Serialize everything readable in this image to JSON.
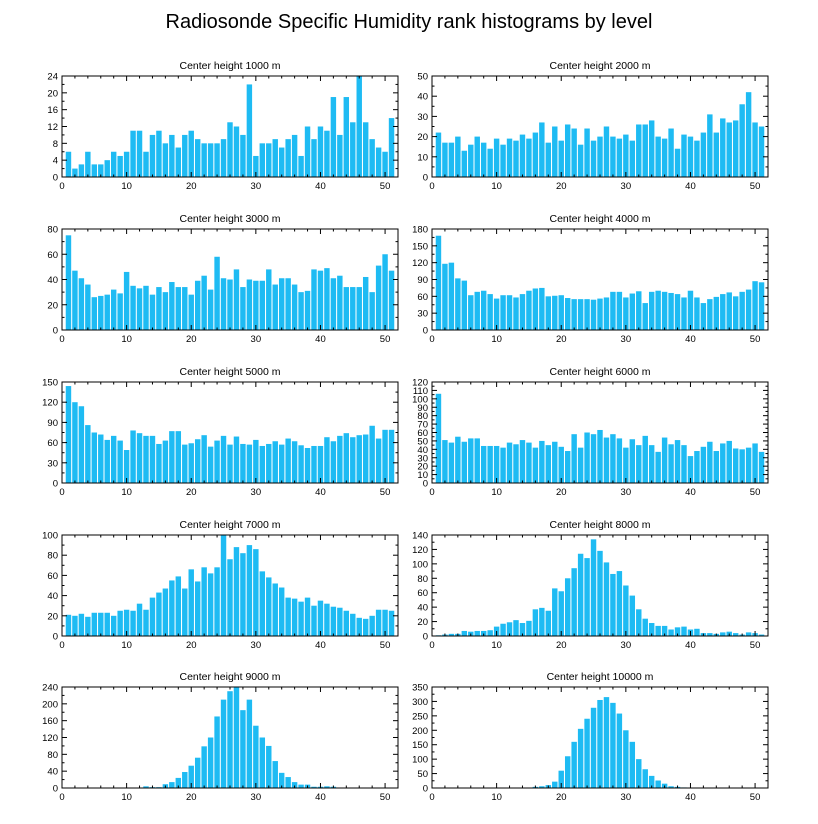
{
  "chart_data": {
    "title": "Radiosonde Specific Humidity rank histograms by level",
    "type": "bar",
    "bar_color": "#1ebbf3",
    "xlim": [
      0,
      52
    ],
    "x_ticks": [
      0,
      10,
      20,
      30,
      40,
      50
    ],
    "panels": [
      {
        "title": "Center height 1000 m",
        "ylim": [
          0,
          24
        ],
        "y_ticks": [
          0,
          4,
          8,
          12,
          16,
          20,
          24
        ],
        "x": [
          1,
          2,
          3,
          4,
          5,
          6,
          7,
          8,
          9,
          10,
          11,
          12,
          13,
          14,
          15,
          16,
          17,
          18,
          19,
          20,
          21,
          22,
          23,
          24,
          25,
          26,
          27,
          28,
          29,
          30,
          31,
          32,
          33,
          34,
          35,
          36,
          37,
          38,
          39,
          40,
          41,
          42,
          43,
          44,
          45,
          46,
          47,
          48,
          49,
          50,
          51
        ],
        "values": [
          6,
          2,
          3,
          6,
          3,
          3,
          4,
          6,
          5,
          6,
          11,
          11,
          6,
          10,
          11,
          8,
          10,
          7,
          10,
          11,
          9,
          8,
          8,
          8,
          9,
          13,
          12,
          10,
          22,
          5,
          8,
          8,
          9,
          7,
          9,
          10,
          5,
          12,
          9,
          12,
          11,
          19,
          10,
          19,
          13,
          24,
          13,
          9,
          7,
          6,
          14
        ]
      },
      {
        "title": "Center height 2000 m",
        "ylim": [
          0,
          50
        ],
        "y_ticks": [
          0,
          10,
          20,
          30,
          40,
          50
        ],
        "x": [
          1,
          2,
          3,
          4,
          5,
          6,
          7,
          8,
          9,
          10,
          11,
          12,
          13,
          14,
          15,
          16,
          17,
          18,
          19,
          20,
          21,
          22,
          23,
          24,
          25,
          26,
          27,
          28,
          29,
          30,
          31,
          32,
          33,
          34,
          35,
          36,
          37,
          38,
          39,
          40,
          41,
          42,
          43,
          44,
          45,
          46,
          47,
          48,
          49,
          50,
          51
        ],
        "values": [
          22,
          17,
          17,
          20,
          13,
          16,
          20,
          17,
          14,
          19,
          16,
          19,
          18,
          21,
          19,
          22,
          27,
          17,
          25,
          18,
          26,
          24,
          16,
          24,
          18,
          20,
          25,
          20,
          19,
          21,
          18,
          26,
          26,
          28,
          20,
          19,
          24,
          14,
          21,
          20,
          18,
          22,
          31,
          22,
          29,
          27,
          28,
          36,
          42,
          27,
          25
        ]
      },
      {
        "title": "Center height 3000 m",
        "ylim": [
          0,
          80
        ],
        "y_ticks": [
          0,
          20,
          40,
          60,
          80
        ],
        "x": [
          1,
          2,
          3,
          4,
          5,
          6,
          7,
          8,
          9,
          10,
          11,
          12,
          13,
          14,
          15,
          16,
          17,
          18,
          19,
          20,
          21,
          22,
          23,
          24,
          25,
          26,
          27,
          28,
          29,
          30,
          31,
          32,
          33,
          34,
          35,
          36,
          37,
          38,
          39,
          40,
          41,
          42,
          43,
          44,
          45,
          46,
          47,
          48,
          49,
          50,
          51
        ],
        "values": [
          75,
          47,
          41,
          36,
          26,
          27,
          28,
          32,
          29,
          46,
          35,
          33,
          35,
          28,
          34,
          30,
          38,
          34,
          34,
          28,
          39,
          43,
          32,
          58,
          41,
          40,
          48,
          34,
          40,
          39,
          39,
          48,
          36,
          41,
          41,
          36,
          30,
          31,
          48,
          47,
          49,
          41,
          43,
          34,
          34,
          34,
          42,
          30,
          51,
          60,
          47
        ]
      },
      {
        "title": "Center height 4000 m",
        "ylim": [
          0,
          180
        ],
        "y_ticks": [
          0,
          30,
          60,
          90,
          120,
          150,
          180
        ],
        "x": [
          1,
          2,
          3,
          4,
          5,
          6,
          7,
          8,
          9,
          10,
          11,
          12,
          13,
          14,
          15,
          16,
          17,
          18,
          19,
          20,
          21,
          22,
          23,
          24,
          25,
          26,
          27,
          28,
          29,
          30,
          31,
          32,
          33,
          34,
          35,
          36,
          37,
          38,
          39,
          40,
          41,
          42,
          43,
          44,
          45,
          46,
          47,
          48,
          49,
          50,
          51
        ],
        "values": [
          168,
          118,
          120,
          92,
          88,
          62,
          68,
          70,
          64,
          56,
          62,
          62,
          58,
          64,
          70,
          74,
          75,
          60,
          61,
          62,
          57,
          55,
          55,
          55,
          54,
          56,
          58,
          68,
          68,
          58,
          65,
          69,
          48,
          68,
          70,
          68,
          66,
          64,
          58,
          70,
          58,
          48,
          55,
          59,
          64,
          67,
          60,
          68,
          72,
          87,
          85
        ]
      },
      {
        "title": "Center height 5000 m",
        "ylim": [
          0,
          150
        ],
        "y_ticks": [
          0,
          30,
          60,
          90,
          120,
          150
        ],
        "x": [
          1,
          2,
          3,
          4,
          5,
          6,
          7,
          8,
          9,
          10,
          11,
          12,
          13,
          14,
          15,
          16,
          17,
          18,
          19,
          20,
          21,
          22,
          23,
          24,
          25,
          26,
          27,
          28,
          29,
          30,
          31,
          32,
          33,
          34,
          35,
          36,
          37,
          38,
          39,
          40,
          41,
          42,
          43,
          44,
          45,
          46,
          47,
          48,
          49,
          50,
          51
        ],
        "values": [
          144,
          120,
          114,
          86,
          75,
          72,
          64,
          70,
          63,
          49,
          78,
          74,
          70,
          70,
          58,
          63,
          77,
          77,
          57,
          59,
          65,
          71,
          54,
          63,
          70,
          57,
          69,
          58,
          57,
          64,
          55,
          58,
          62,
          57,
          66,
          62,
          56,
          52,
          55,
          55,
          68,
          62,
          70,
          74,
          68,
          71,
          72,
          85,
          66,
          79,
          79
        ]
      },
      {
        "title": "Center height 6000 m",
        "ylim": [
          0,
          120
        ],
        "y_ticks": [
          0,
          10,
          20,
          30,
          40,
          50,
          60,
          70,
          80,
          90,
          100,
          110,
          120
        ],
        "x": [
          1,
          2,
          3,
          4,
          5,
          6,
          7,
          8,
          9,
          10,
          11,
          12,
          13,
          14,
          15,
          16,
          17,
          18,
          19,
          20,
          21,
          22,
          23,
          24,
          25,
          26,
          27,
          28,
          29,
          30,
          31,
          32,
          33,
          34,
          35,
          36,
          37,
          38,
          39,
          40,
          41,
          42,
          43,
          44,
          45,
          46,
          47,
          48,
          49,
          50,
          51
        ],
        "values": [
          106,
          51,
          48,
          55,
          49,
          53,
          53,
          44,
          44,
          44,
          42,
          48,
          46,
          51,
          48,
          42,
          50,
          45,
          49,
          43,
          38,
          58,
          42,
          60,
          58,
          63,
          54,
          58,
          53,
          42,
          52,
          45,
          56,
          45,
          37,
          54,
          46,
          51,
          45,
          32,
          38,
          43,
          49,
          38,
          47,
          50,
          41,
          40,
          42,
          47,
          37
        ]
      },
      {
        "title": "Center height 7000 m",
        "ylim": [
          0,
          100
        ],
        "y_ticks": [
          0,
          20,
          40,
          60,
          80,
          100
        ],
        "x": [
          1,
          2,
          3,
          4,
          5,
          6,
          7,
          8,
          9,
          10,
          11,
          12,
          13,
          14,
          15,
          16,
          17,
          18,
          19,
          20,
          21,
          22,
          23,
          24,
          25,
          26,
          27,
          28,
          29,
          30,
          31,
          32,
          33,
          34,
          35,
          36,
          37,
          38,
          39,
          40,
          41,
          42,
          43,
          44,
          45,
          46,
          47,
          48,
          49,
          50,
          51
        ],
        "values": [
          21,
          20,
          22,
          19,
          23,
          23,
          23,
          20,
          25,
          26,
          25,
          32,
          26,
          38,
          43,
          47,
          55,
          59,
          47,
          66,
          54,
          68,
          62,
          68,
          100,
          76,
          88,
          82,
          90,
          86,
          64,
          58,
          52,
          48,
          38,
          37,
          34,
          38,
          30,
          35,
          32,
          29,
          28,
          25,
          22,
          18,
          17,
          20,
          26,
          26,
          25
        ]
      },
      {
        "title": "Center height 8000 m",
        "ylim": [
          0,
          140
        ],
        "y_ticks": [
          0,
          20,
          40,
          60,
          80,
          100,
          120,
          140
        ],
        "x": [
          1,
          2,
          3,
          4,
          5,
          6,
          7,
          8,
          9,
          10,
          11,
          12,
          13,
          14,
          15,
          16,
          17,
          18,
          19,
          20,
          21,
          22,
          23,
          24,
          25,
          26,
          27,
          28,
          29,
          30,
          31,
          32,
          33,
          34,
          35,
          36,
          37,
          38,
          39,
          40,
          41,
          42,
          43,
          44,
          45,
          46,
          47,
          48,
          49,
          50,
          51
        ],
        "values": [
          1,
          2,
          3,
          3,
          7,
          6,
          7,
          7,
          8,
          13,
          17,
          19,
          22,
          18,
          21,
          37,
          39,
          35,
          66,
          62,
          80,
          94,
          114,
          108,
          134,
          118,
          102,
          86,
          90,
          70,
          56,
          37,
          24,
          18,
          14,
          14,
          9,
          12,
          13,
          9,
          10,
          4,
          4,
          3,
          5,
          6,
          4,
          2,
          5,
          4,
          2
        ]
      },
      {
        "title": "Center height 9000 m",
        "ylim": [
          0,
          240
        ],
        "y_ticks": [
          0,
          40,
          80,
          120,
          160,
          200,
          240
        ],
        "x": [
          1,
          2,
          3,
          4,
          5,
          6,
          7,
          8,
          9,
          10,
          11,
          12,
          13,
          14,
          15,
          16,
          17,
          18,
          19,
          20,
          21,
          22,
          23,
          24,
          25,
          26,
          27,
          28,
          29,
          30,
          31,
          32,
          33,
          34,
          35,
          36,
          37,
          38,
          39,
          40,
          41,
          42,
          43,
          44,
          45,
          46,
          47,
          48,
          49,
          50,
          51
        ],
        "values": [
          0,
          0,
          0,
          0,
          0,
          0,
          0,
          0,
          0,
          0,
          0,
          0,
          4,
          2,
          2,
          9,
          14,
          24,
          38,
          53,
          72,
          99,
          120,
          170,
          210,
          230,
          240,
          185,
          210,
          148,
          120,
          100,
          64,
          36,
          26,
          14,
          8,
          8,
          3,
          3,
          4,
          3,
          0,
          0,
          0,
          0,
          0,
          0,
          0,
          0,
          0
        ]
      },
      {
        "title": "Center height 10000 m",
        "ylim": [
          0,
          350
        ],
        "y_ticks": [
          0,
          50,
          100,
          150,
          200,
          250,
          300,
          350
        ],
        "x": [
          1,
          2,
          3,
          4,
          5,
          6,
          7,
          8,
          9,
          10,
          11,
          12,
          13,
          14,
          15,
          16,
          17,
          18,
          19,
          20,
          21,
          22,
          23,
          24,
          25,
          26,
          27,
          28,
          29,
          30,
          31,
          32,
          33,
          34,
          35,
          36,
          37,
          38,
          39,
          40,
          41,
          42,
          43,
          44,
          45,
          46,
          47,
          48,
          49,
          50,
          51
        ],
        "values": [
          0,
          0,
          0,
          0,
          0,
          0,
          0,
          0,
          0,
          0,
          0,
          0,
          0,
          0,
          0,
          4,
          6,
          10,
          22,
          60,
          110,
          160,
          205,
          240,
          278,
          305,
          315,
          295,
          258,
          200,
          160,
          100,
          65,
          42,
          26,
          15,
          6,
          4,
          2,
          1,
          0,
          0,
          0,
          0,
          0,
          0,
          0,
          0,
          0,
          0,
          0
        ]
      }
    ]
  }
}
